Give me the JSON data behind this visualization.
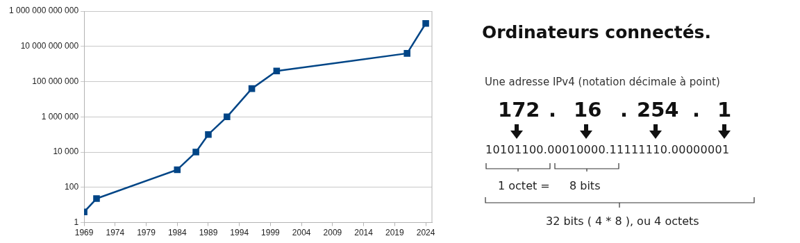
{
  "chart_data": {
    "type": "line",
    "title": "Ordinateurs connectés.",
    "x": [
      1969,
      1971,
      1984,
      1987,
      1989,
      1992,
      1996,
      2000,
      2021,
      2024
    ],
    "series": [
      {
        "color": "#004586",
        "values": [
          4,
          23,
          1000,
          10000,
          100000,
          1000000,
          40000000,
          400000000,
          4000000000,
          200000000000
        ]
      }
    ],
    "log": "y",
    "xlim": [
      1969,
      2025
    ],
    "xticks": [
      1969,
      1974,
      1979,
      1984,
      1989,
      1994,
      1999,
      2004,
      2009,
      2014,
      2019,
      2024
    ],
    "ylim": [
      1,
      1000000000000
    ],
    "yticks": [
      {
        "value": 1,
        "label": "1"
      },
      {
        "value": 100,
        "label": "100"
      },
      {
        "value": 10000,
        "label": "10 000"
      },
      {
        "value": 1000000,
        "label": "1 000 000"
      },
      {
        "value": 100000000,
        "label": "100 000 000"
      },
      {
        "value": 10000000000,
        "label": "10 000 000 000"
      },
      {
        "value": 1000000000000,
        "label": "1 000 000 000 000"
      }
    ],
    "grid": "y",
    "legend": false,
    "marker": "square",
    "line_style": "solid",
    "annotations": [
      "Une adresse IPv4 (notation décimale à point)",
      "172",
      ".",
      "16",
      ".",
      "254",
      ".",
      "1",
      "10101100.00010000.11111110.00000001",
      "1 octet =",
      "8 bits",
      "32 bits ( 4 * 8 ), ou 4 octets"
    ]
  }
}
